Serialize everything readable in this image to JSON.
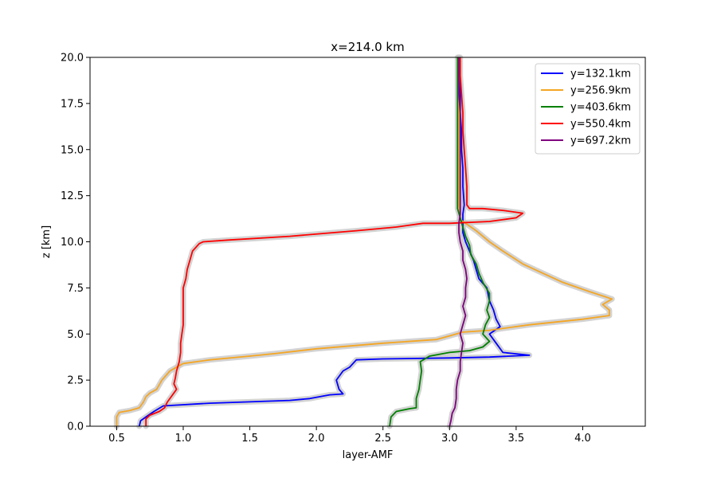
{
  "chart_data": {
    "type": "line",
    "title": "x=214.0 km",
    "xlabel": "layer-AMF",
    "ylabel": "z [km]",
    "xlim": [
      0.3,
      4.47
    ],
    "ylim": [
      0,
      20
    ],
    "xticks": [
      0.5,
      1.0,
      1.5,
      2.0,
      2.5,
      3.0,
      3.5,
      4.0
    ],
    "xtick_labels": [
      "0.5",
      "1.0",
      "1.5",
      "2.0",
      "2.5",
      "3.0",
      "3.5",
      "4.0"
    ],
    "yticks": [
      0,
      2.5,
      5.0,
      7.5,
      10.0,
      12.5,
      15.0,
      17.5,
      20.0
    ],
    "ytick_labels": [
      "0.0",
      "2.5",
      "5.0",
      "7.5",
      "10.0",
      "12.5",
      "15.0",
      "17.5",
      "20.0"
    ],
    "grid": false,
    "legend_position": "top-right",
    "uncertainty_band_color": "#c8c8c8",
    "series": [
      {
        "name": "y=132.1km",
        "color": "#0000ff",
        "points": [
          [
            0.67,
            0
          ],
          [
            0.68,
            0.3
          ],
          [
            0.72,
            0.5
          ],
          [
            0.78,
            0.8
          ],
          [
            0.85,
            1.1
          ],
          [
            1.2,
            1.25
          ],
          [
            1.8,
            1.4
          ],
          [
            1.95,
            1.5
          ],
          [
            2.1,
            1.7
          ],
          [
            2.2,
            1.75
          ],
          [
            2.17,
            2.0
          ],
          [
            2.15,
            2.5
          ],
          [
            2.2,
            3.0
          ],
          [
            2.25,
            3.2
          ],
          [
            2.3,
            3.6
          ],
          [
            2.5,
            3.65
          ],
          [
            3.0,
            3.7
          ],
          [
            3.3,
            3.75
          ],
          [
            3.6,
            3.85
          ],
          [
            3.4,
            4.0
          ],
          [
            3.35,
            4.5
          ],
          [
            3.3,
            5.0
          ],
          [
            3.38,
            5.4
          ],
          [
            3.35,
            5.8
          ],
          [
            3.33,
            6.3
          ],
          [
            3.3,
            6.8
          ],
          [
            3.28,
            7.5
          ],
          [
            3.22,
            8.0
          ],
          [
            3.2,
            8.5
          ],
          [
            3.18,
            9.0
          ],
          [
            3.15,
            9.5
          ],
          [
            3.12,
            10.0
          ],
          [
            3.1,
            10.5
          ],
          [
            3.1,
            11.0
          ],
          [
            3.1,
            11.5
          ],
          [
            3.11,
            12.0
          ],
          [
            3.1,
            13.0
          ],
          [
            3.1,
            14.0
          ],
          [
            3.09,
            15.0
          ],
          [
            3.09,
            16.0
          ],
          [
            3.08,
            17.0
          ],
          [
            3.08,
            18.0
          ],
          [
            3.07,
            19.0
          ],
          [
            3.07,
            20.0
          ]
        ]
      },
      {
        "name": "y=256.9km",
        "color": "#f5a623",
        "points": [
          [
            0.5,
            0
          ],
          [
            0.5,
            0.5
          ],
          [
            0.52,
            0.75
          ],
          [
            0.6,
            0.85
          ],
          [
            0.67,
            1.0
          ],
          [
            0.7,
            1.3
          ],
          [
            0.72,
            1.6
          ],
          [
            0.75,
            1.8
          ],
          [
            0.8,
            2.0
          ],
          [
            0.84,
            2.5
          ],
          [
            0.9,
            3.0
          ],
          [
            0.95,
            3.2
          ],
          [
            1.0,
            3.4
          ],
          [
            1.2,
            3.6
          ],
          [
            1.5,
            3.8
          ],
          [
            1.7,
            3.95
          ],
          [
            2.0,
            4.2
          ],
          [
            2.5,
            4.5
          ],
          [
            2.9,
            4.7
          ],
          [
            3.0,
            4.9
          ],
          [
            3.1,
            5.1
          ],
          [
            3.3,
            5.2
          ],
          [
            3.6,
            5.5
          ],
          [
            4.0,
            5.8
          ],
          [
            4.2,
            6.0
          ],
          [
            4.2,
            6.3
          ],
          [
            4.15,
            6.6
          ],
          [
            4.22,
            6.9
          ],
          [
            4.05,
            7.3
          ],
          [
            3.85,
            7.8
          ],
          [
            3.7,
            8.3
          ],
          [
            3.55,
            8.8
          ],
          [
            3.4,
            9.5
          ],
          [
            3.3,
            10.0
          ],
          [
            3.2,
            10.6
          ],
          [
            3.12,
            11.0
          ],
          [
            3.08,
            11.2
          ],
          [
            3.08,
            11.5
          ],
          [
            3.07,
            12.0
          ],
          [
            3.07,
            13.0
          ],
          [
            3.07,
            14.0
          ],
          [
            3.07,
            15.0
          ],
          [
            3.07,
            16.0
          ],
          [
            3.07,
            17.0
          ],
          [
            3.07,
            18.0
          ],
          [
            3.07,
            19.0
          ],
          [
            3.07,
            20.0
          ]
        ]
      },
      {
        "name": "y=403.6km",
        "color": "#008000",
        "points": [
          [
            2.55,
            0
          ],
          [
            2.56,
            0.5
          ],
          [
            2.6,
            0.8
          ],
          [
            2.7,
            0.95
          ],
          [
            2.75,
            1.0
          ],
          [
            2.75,
            1.5
          ],
          [
            2.77,
            2.0
          ],
          [
            2.78,
            2.5
          ],
          [
            2.79,
            3.0
          ],
          [
            2.78,
            3.5
          ],
          [
            2.85,
            3.8
          ],
          [
            3.0,
            4.0
          ],
          [
            3.15,
            4.1
          ],
          [
            3.25,
            4.3
          ],
          [
            3.3,
            4.6
          ],
          [
            3.25,
            5.0
          ],
          [
            3.27,
            5.5
          ],
          [
            3.3,
            5.9
          ],
          [
            3.28,
            6.3
          ],
          [
            3.3,
            6.8
          ],
          [
            3.3,
            7.2
          ],
          [
            3.25,
            7.8
          ],
          [
            3.22,
            8.3
          ],
          [
            3.2,
            8.8
          ],
          [
            3.16,
            9.3
          ],
          [
            3.15,
            9.8
          ],
          [
            3.12,
            10.3
          ],
          [
            3.1,
            10.8
          ],
          [
            3.08,
            11.3
          ],
          [
            3.06,
            11.8
          ],
          [
            3.06,
            12.5
          ],
          [
            3.06,
            13.0
          ],
          [
            3.06,
            14.0
          ],
          [
            3.06,
            15.0
          ],
          [
            3.06,
            16.0
          ],
          [
            3.06,
            17.0
          ],
          [
            3.06,
            18.0
          ],
          [
            3.06,
            19.0
          ],
          [
            3.06,
            20.0
          ]
        ]
      },
      {
        "name": "y=550.4km",
        "color": "#ff0000",
        "points": [
          [
            0.72,
            0
          ],
          [
            0.72,
            0.4
          ],
          [
            0.75,
            0.6
          ],
          [
            0.82,
            0.8
          ],
          [
            0.86,
            1.0
          ],
          [
            0.88,
            1.3
          ],
          [
            0.92,
            1.7
          ],
          [
            0.95,
            2.0
          ],
          [
            0.93,
            2.3
          ],
          [
            0.94,
            2.6
          ],
          [
            0.95,
            3.0
          ],
          [
            0.97,
            3.5
          ],
          [
            0.98,
            4.0
          ],
          [
            0.98,
            4.5
          ],
          [
            0.99,
            5.0
          ],
          [
            1.0,
            5.5
          ],
          [
            1.0,
            6.0
          ],
          [
            1.0,
            6.5
          ],
          [
            1.0,
            7.0
          ],
          [
            1.0,
            7.5
          ],
          [
            1.02,
            8.0
          ],
          [
            1.03,
            8.5
          ],
          [
            1.05,
            9.0
          ],
          [
            1.07,
            9.5
          ],
          [
            1.12,
            9.9
          ],
          [
            1.15,
            10.0
          ],
          [
            1.35,
            10.1
          ],
          [
            1.8,
            10.3
          ],
          [
            2.3,
            10.6
          ],
          [
            2.6,
            10.8
          ],
          [
            2.8,
            11.0
          ],
          [
            3.0,
            11.0
          ],
          [
            3.3,
            11.1
          ],
          [
            3.5,
            11.3
          ],
          [
            3.55,
            11.55
          ],
          [
            3.4,
            11.7
          ],
          [
            3.25,
            11.8
          ],
          [
            3.15,
            11.8
          ],
          [
            3.13,
            12.0
          ],
          [
            3.13,
            13.0
          ],
          [
            3.12,
            14.0
          ],
          [
            3.11,
            15.0
          ],
          [
            3.1,
            16.0
          ],
          [
            3.1,
            17.0
          ],
          [
            3.09,
            18.0
          ],
          [
            3.08,
            19.0
          ],
          [
            3.08,
            20.0
          ]
        ]
      },
      {
        "name": "y=697.2km",
        "color": "#800080",
        "points": [
          [
            3.0,
            0
          ],
          [
            3.01,
            0.3
          ],
          [
            3.02,
            0.7
          ],
          [
            3.04,
            1.0
          ],
          [
            3.05,
            1.5
          ],
          [
            3.05,
            2.0
          ],
          [
            3.06,
            2.5
          ],
          [
            3.08,
            3.0
          ],
          [
            3.08,
            3.5
          ],
          [
            3.09,
            4.0
          ],
          [
            3.1,
            4.5
          ],
          [
            3.08,
            5.0
          ],
          [
            3.1,
            5.5
          ],
          [
            3.12,
            6.0
          ],
          [
            3.1,
            6.5
          ],
          [
            3.12,
            7.0
          ],
          [
            3.12,
            7.5
          ],
          [
            3.13,
            8.0
          ],
          [
            3.12,
            8.5
          ],
          [
            3.1,
            9.0
          ],
          [
            3.1,
            9.5
          ],
          [
            3.08,
            10.0
          ],
          [
            3.07,
            10.5
          ],
          [
            3.07,
            11.0
          ],
          [
            3.08,
            11.5
          ],
          [
            3.08,
            12.0
          ],
          [
            3.08,
            13.0
          ],
          [
            3.08,
            14.0
          ],
          [
            3.08,
            15.0
          ],
          [
            3.08,
            16.0
          ],
          [
            3.08,
            17.0
          ],
          [
            3.07,
            18.0
          ],
          [
            3.07,
            19.0
          ],
          [
            3.07,
            20.0
          ]
        ]
      }
    ]
  }
}
